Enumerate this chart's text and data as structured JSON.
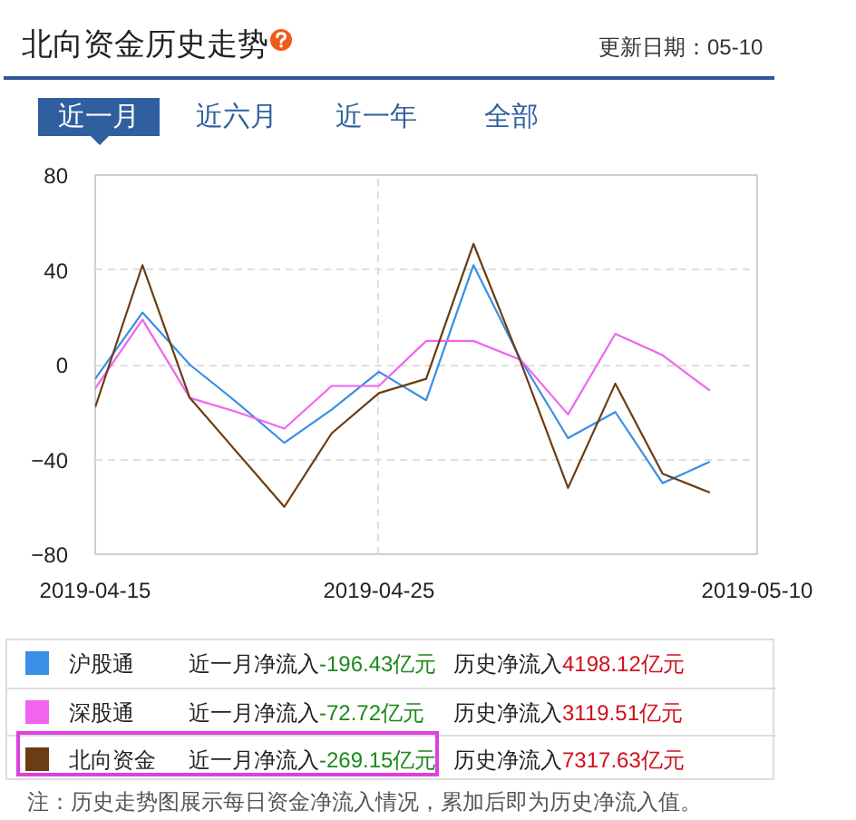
{
  "chart_data": {
    "type": "line",
    "title": "北向资金历史走势",
    "categories": [
      "2019-04-15",
      null,
      null,
      null,
      null,
      null,
      "2019-04-25",
      null,
      null,
      null,
      null,
      null,
      null,
      null,
      "2019-05-10"
    ],
    "series": [
      {
        "name": "沪股通",
        "color": "#3a8ee6",
        "values": [
          -6,
          22,
          0,
          -16,
          -33,
          -19,
          -3,
          -15,
          42,
          2,
          -31,
          -20,
          -50,
          -41,
          null
        ]
      },
      {
        "name": "深股通",
        "color": "#f064f0",
        "values": [
          -10,
          19,
          -14,
          -20,
          -27,
          -9,
          -9,
          10,
          10,
          2,
          -21,
          13,
          4,
          -11,
          null
        ]
      },
      {
        "name": "北向资金",
        "color": "#6b3d14",
        "values": [
          -18,
          42,
          -14,
          -37,
          -60,
          -29,
          -12,
          -6,
          51,
          1,
          -52,
          -8,
          -46,
          -54,
          null
        ]
      }
    ],
    "ylim": [
      -80,
      80
    ],
    "yticks": [
      -80,
      -40,
      0,
      40,
      80
    ],
    "grid": true,
    "legend": "bottom",
    "line_style": "solid",
    "annotations": [
      "更新日期：05-10",
      "近一月",
      "近六月",
      "近一年",
      "全部",
      "近一月净流入-196.43亿元",
      "历史净流入4198.12亿元",
      "近一月净流入-72.72亿元",
      "历史净流入3119.51亿元",
      "近一月净流入-269.15亿元",
      "历史净流入7317.63亿元",
      "注：历史走势图展示每日资金净流入情况，累加后即为历史净流入值。"
    ]
  }
}
